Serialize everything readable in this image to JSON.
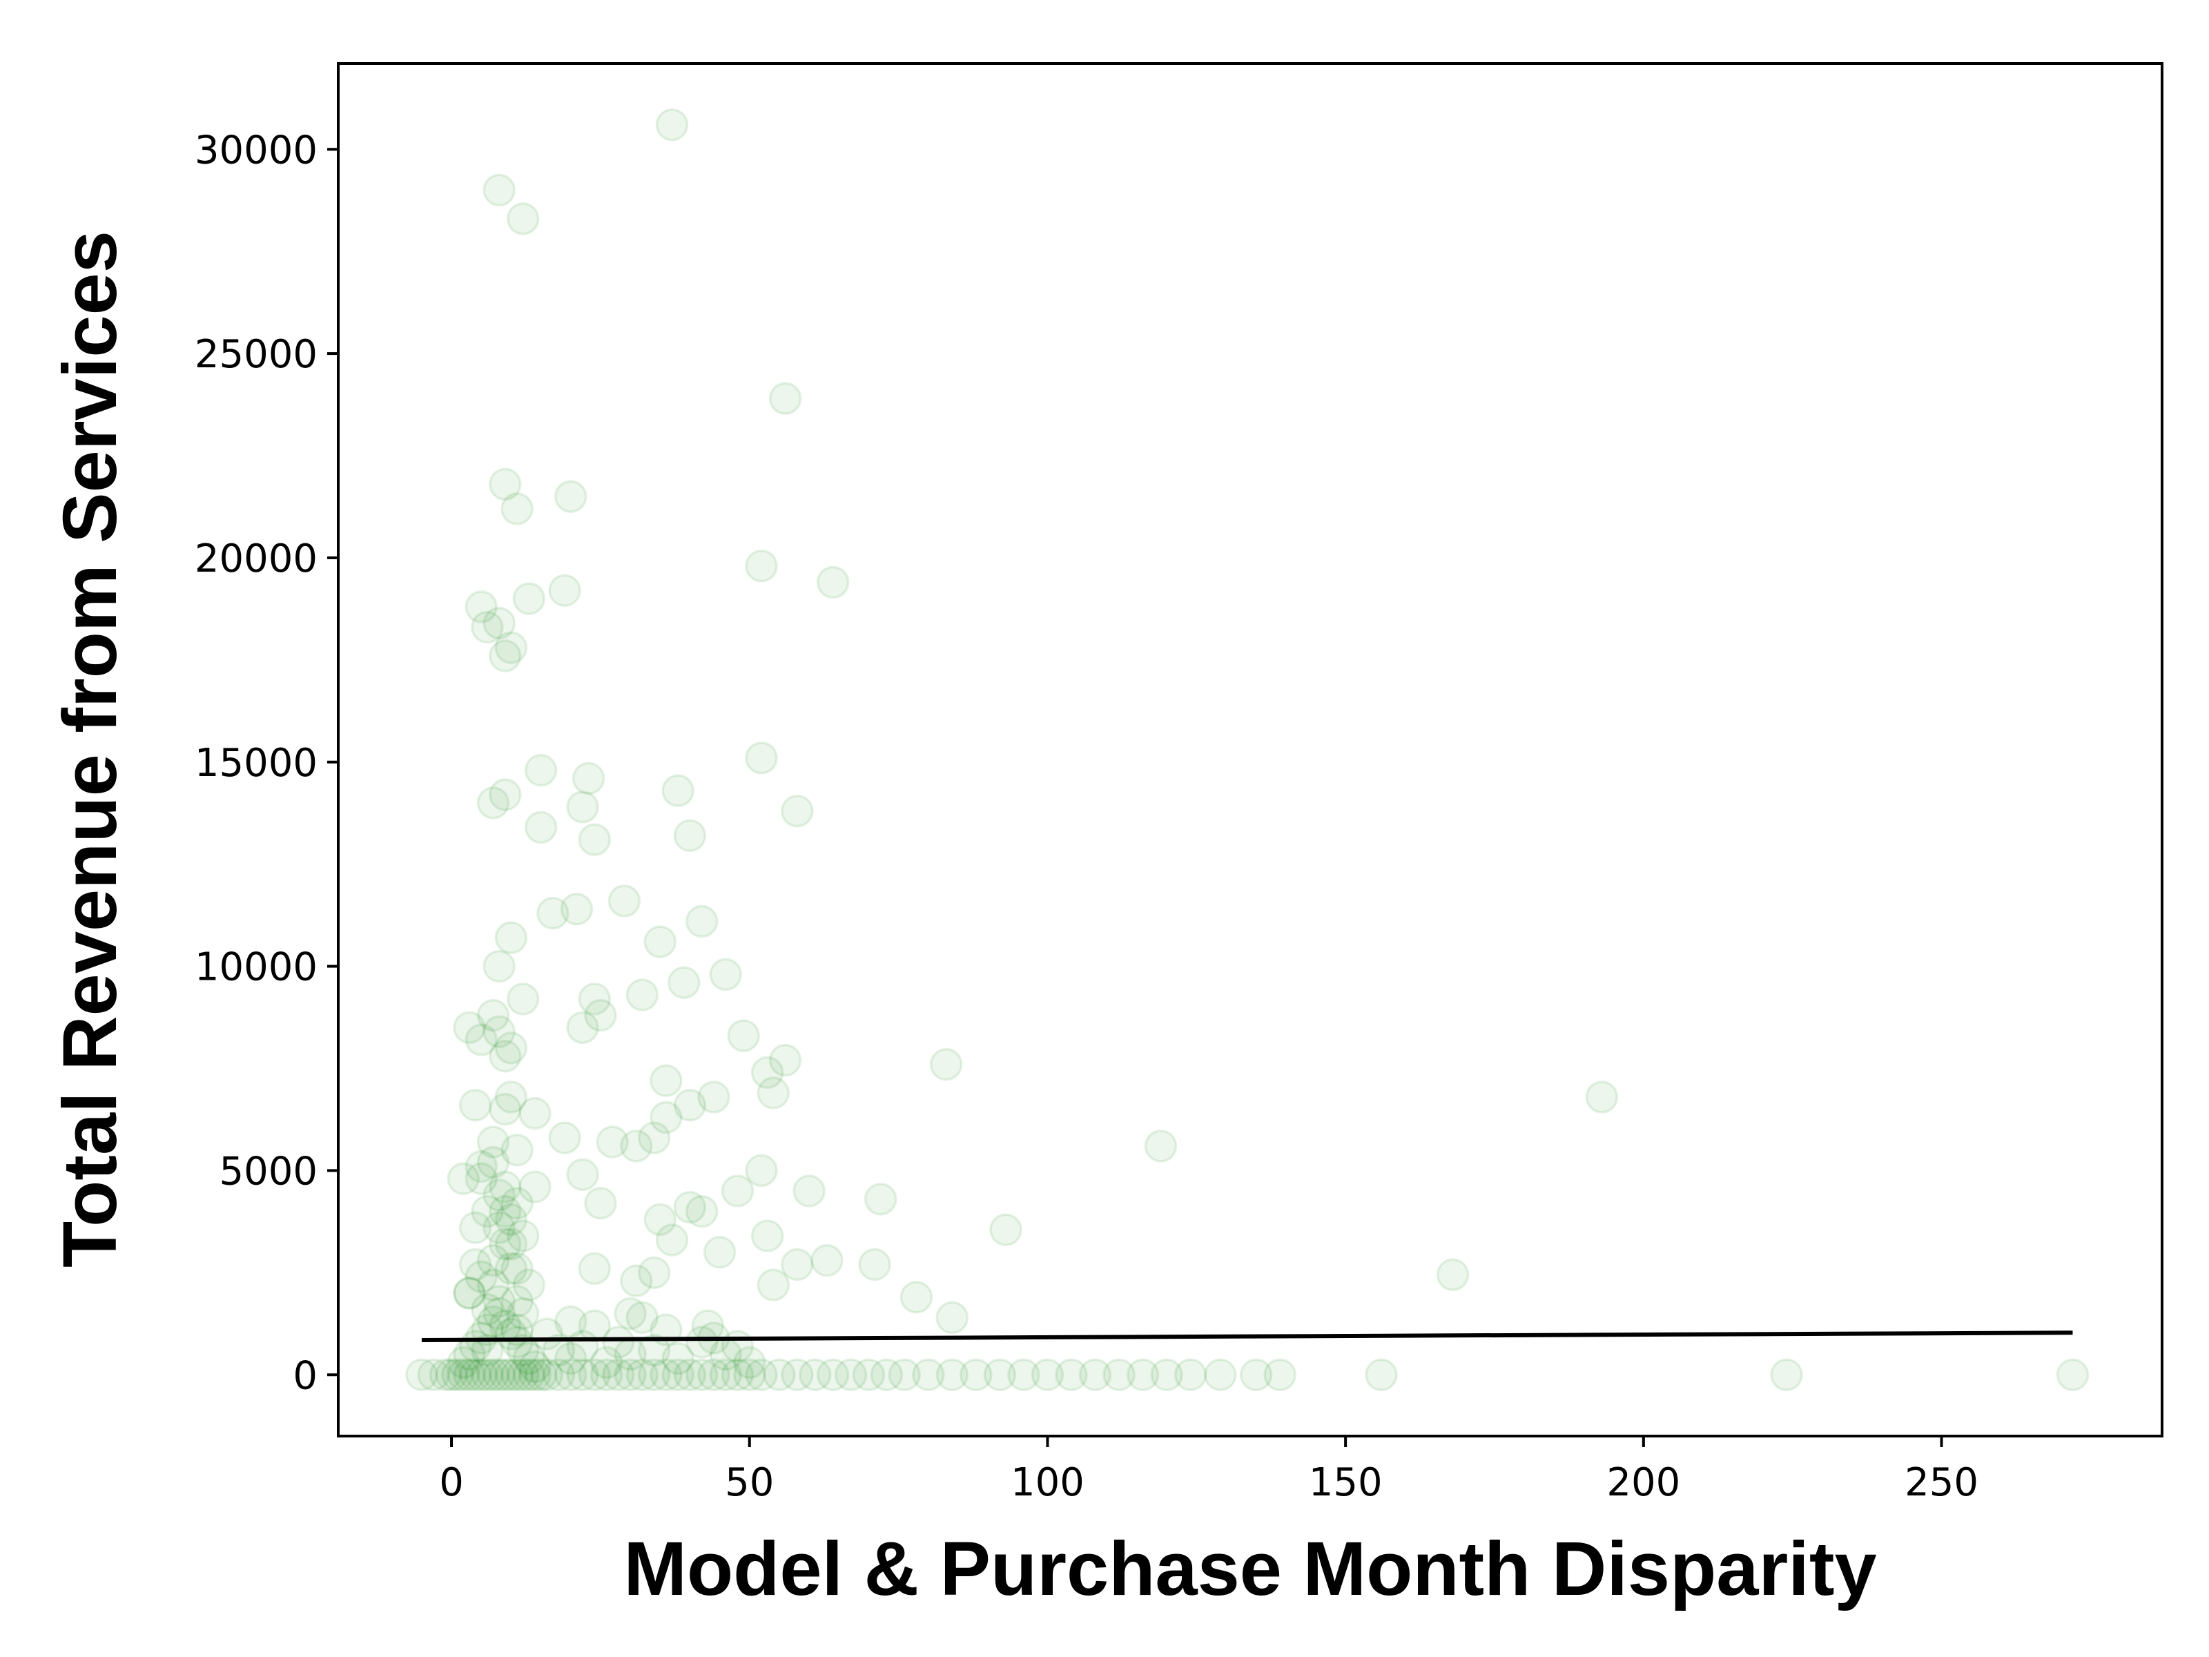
{
  "chart_data": {
    "type": "scatter",
    "title": "",
    "xlabel": "Model & Purchase Month Disparity",
    "ylabel": "Total Revenue from Services",
    "xlim": [
      -19,
      287
    ],
    "ylim": [
      -1500,
      32100
    ],
    "xticks": [
      0,
      50,
      100,
      150,
      200,
      250
    ],
    "yticks": [
      0,
      5000,
      10000,
      15000,
      20000,
      25000,
      30000
    ],
    "grid": false,
    "legend": false,
    "point_color": "#008000",
    "point_alpha": 0.07,
    "line_color": "#000000",
    "series": [
      {
        "kind": "points",
        "x": [
          37,
          8,
          12,
          56,
          9,
          11,
          20,
          52,
          64,
          19,
          13,
          5,
          6,
          8,
          10,
          9,
          52,
          15,
          23,
          7,
          22,
          38,
          9,
          15,
          58,
          24,
          40,
          29,
          17,
          21,
          42,
          35,
          10,
          8,
          39,
          46,
          32,
          12,
          7,
          8,
          24,
          22,
          49,
          25,
          3,
          5,
          9,
          10,
          56,
          83,
          53,
          36,
          54,
          10,
          9,
          14,
          4,
          40,
          36,
          44,
          19,
          7,
          11,
          27,
          31,
          34,
          52,
          60,
          5,
          2,
          22,
          72,
          14,
          9,
          25,
          40,
          8,
          48,
          42,
          93,
          53,
          35,
          37,
          45,
          10,
          58,
          63,
          71,
          4,
          168,
          24,
          31,
          34,
          54,
          78,
          84,
          7,
          11,
          3,
          12,
          119,
          193,
          6,
          20,
          43,
          11,
          30
        ],
        "y": [
          30600,
          29000,
          28300,
          23900,
          21800,
          21200,
          21500,
          19800,
          19400,
          19200,
          19000,
          18800,
          18300,
          18400,
          17800,
          17600,
          15100,
          14800,
          14600,
          14000,
          13900,
          14300,
          14200,
          13400,
          13800,
          13100,
          13200,
          11600,
          11300,
          11400,
          11100,
          10600,
          10700,
          10000,
          9600,
          9800,
          9300,
          9200,
          8800,
          8400,
          9200,
          8500,
          8300,
          8800,
          8500,
          8200,
          7800,
          8000,
          7700,
          7600,
          7400,
          7200,
          6900,
          6800,
          6500,
          6400,
          6600,
          6600,
          6300,
          6800,
          5800,
          5700,
          5500,
          5700,
          5600,
          5800,
          5000,
          4500,
          5100,
          4800,
          4900,
          4300,
          4600,
          4000,
          4200,
          4100,
          3600,
          4500,
          4000,
          3550,
          3400,
          3800,
          3300,
          3000,
          3200,
          2700,
          2800,
          2700,
          2700,
          2450,
          2600,
          2300,
          2500,
          2200,
          1900,
          1400,
          2200,
          1800,
          2000,
          1500,
          5600,
          6800,
          1600,
          1300,
          1200,
          1100,
          1500
        ]
      },
      {
        "kind": "points",
        "x": [
          -5,
          -3,
          -1,
          0,
          1,
          2,
          3,
          4,
          5,
          6,
          7,
          8,
          9,
          10,
          11,
          12,
          13,
          14,
          15,
          16,
          18,
          20,
          22,
          24,
          26,
          28,
          30,
          32,
          34,
          36,
          38,
          40,
          42,
          44,
          46,
          48,
          50,
          52,
          55,
          58,
          61,
          64,
          67,
          70,
          73,
          76,
          80,
          84,
          88,
          92,
          96,
          100,
          104,
          108,
          112,
          116,
          120,
          124,
          129,
          135,
          139,
          156,
          224,
          272
        ],
        "y": [
          0,
          0,
          0,
          0,
          0,
          0,
          0,
          0,
          0,
          0,
          0,
          0,
          0,
          0,
          0,
          0,
          0,
          0,
          0,
          0,
          0,
          0,
          0,
          0,
          0,
          0,
          0,
          0,
          0,
          0,
          0,
          0,
          0,
          0,
          0,
          0,
          0,
          0,
          0,
          0,
          0,
          0,
          0,
          0,
          0,
          0,
          0,
          0,
          0,
          0,
          0,
          0,
          0,
          0,
          0,
          0,
          0,
          0,
          0,
          0,
          0,
          0,
          0,
          0
        ]
      },
      {
        "kind": "points",
        "x": [
          2,
          3,
          4,
          5,
          6,
          7,
          8,
          9,
          10,
          11,
          12,
          13,
          14,
          3,
          5,
          7,
          9,
          11,
          13,
          4,
          6,
          8,
          10,
          12,
          5,
          7,
          9,
          11,
          6,
          8,
          10,
          18,
          20,
          22,
          26,
          30,
          34,
          38,
          42,
          46,
          50,
          16,
          24,
          28,
          32,
          36,
          44,
          48
        ],
        "y": [
          300,
          500,
          700,
          900,
          1100,
          1300,
          1500,
          1200,
          1000,
          800,
          600,
          400,
          200,
          2000,
          2400,
          2800,
          3200,
          2600,
          2200,
          3600,
          4000,
          4400,
          3800,
          3400,
          4800,
          5200,
          4600,
          4200,
          600,
          1800,
          2600,
          600,
          400,
          700,
          300,
          500,
          600,
          400,
          800,
          500,
          300,
          1000,
          1200,
          800,
          1400,
          1100,
          900,
          700
        ]
      },
      {
        "kind": "line",
        "name": "",
        "x": [
          -5,
          272
        ],
        "y": [
          850,
          1030
        ]
      }
    ]
  }
}
